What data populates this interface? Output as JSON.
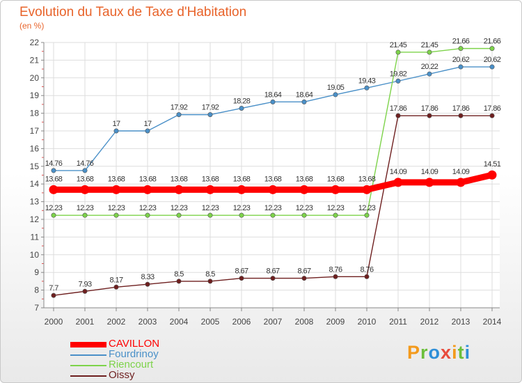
{
  "title": "Evolution du Taux de Taxe d'Habitation",
  "unit_label": "(en %)",
  "logo": {
    "text": "Proxiti",
    "letters": [
      {
        "ch": "P",
        "color": "#f39a1c"
      },
      {
        "ch": "r",
        "color": "#6cbf3c"
      },
      {
        "ch": "o",
        "color": "#2f8fd8"
      },
      {
        "ch": "x",
        "color": "#e84c3d"
      },
      {
        "ch": "i",
        "color": "#f39a1c"
      },
      {
        "ch": "t",
        "color": "#6cbf3c"
      },
      {
        "ch": "i",
        "color": "#2f8fd8"
      }
    ]
  },
  "chart_data": {
    "type": "line",
    "x": [
      2000,
      2001,
      2002,
      2003,
      2004,
      2005,
      2006,
      2007,
      2008,
      2009,
      2010,
      2011,
      2012,
      2013,
      2014
    ],
    "ylim": [
      7,
      22
    ],
    "yticks": [
      7,
      8,
      9,
      10,
      11,
      12,
      13,
      14,
      15,
      16,
      17,
      18,
      19,
      20,
      21,
      22
    ],
    "grid": true,
    "legend_position": "bottom-left",
    "series": [
      {
        "name": "CAVILLON",
        "color": "#ff0000",
        "emphasis": true,
        "values": [
          13.68,
          13.68,
          13.68,
          13.68,
          13.68,
          13.68,
          13.68,
          13.68,
          13.68,
          13.68,
          13.68,
          14.09,
          14.09,
          14.09,
          14.51
        ],
        "labels": [
          "13.68",
          "13.68",
          "13.68",
          "13.68",
          "13.68",
          "13.68",
          "13.68",
          "13.68",
          "13.68",
          "13.68",
          "13.68",
          "14.09",
          "14.09",
          "14.09",
          "14.51"
        ]
      },
      {
        "name": "Fourdrinoy",
        "color": "#4a90c8",
        "values": [
          14.76,
          14.76,
          17,
          17,
          17.92,
          17.92,
          18.28,
          18.64,
          18.64,
          19.05,
          19.43,
          19.82,
          20.22,
          20.62,
          20.62
        ],
        "labels": [
          "14.76",
          "14.76",
          "17",
          "17",
          "17.92",
          "17.92",
          "18.28",
          "18.64",
          "18.64",
          "19.05",
          "19.43",
          "19.82",
          "20.22",
          "20.62",
          "20.62"
        ]
      },
      {
        "name": "Riencourt",
        "color": "#7dd34a",
        "values": [
          12.23,
          12.23,
          12.23,
          12.23,
          12.23,
          12.23,
          12.23,
          12.23,
          12.23,
          12.23,
          12.23,
          21.45,
          21.45,
          21.66,
          21.66
        ],
        "labels": [
          "12.23",
          "12.23",
          "12.23",
          "12.23",
          "12.23",
          "12.23",
          "12.23",
          "12.23",
          "12.23",
          "12.23",
          "12.23",
          "21.45",
          "21.45",
          "21.66",
          "21.66"
        ]
      },
      {
        "name": "Oissy",
        "color": "#6e1f1f",
        "values": [
          7.7,
          7.93,
          8.17,
          8.33,
          8.5,
          8.5,
          8.67,
          8.67,
          8.67,
          8.76,
          8.76,
          17.86,
          17.86,
          17.86,
          17.86
        ],
        "labels": [
          "7.7",
          "7.93",
          "8.17",
          "8.33",
          "8.5",
          "8.5",
          "8.67",
          "8.67",
          "8.67",
          "8.76",
          "8.76",
          "17.86",
          "17.86",
          "17.86",
          "17.86"
        ]
      }
    ]
  }
}
